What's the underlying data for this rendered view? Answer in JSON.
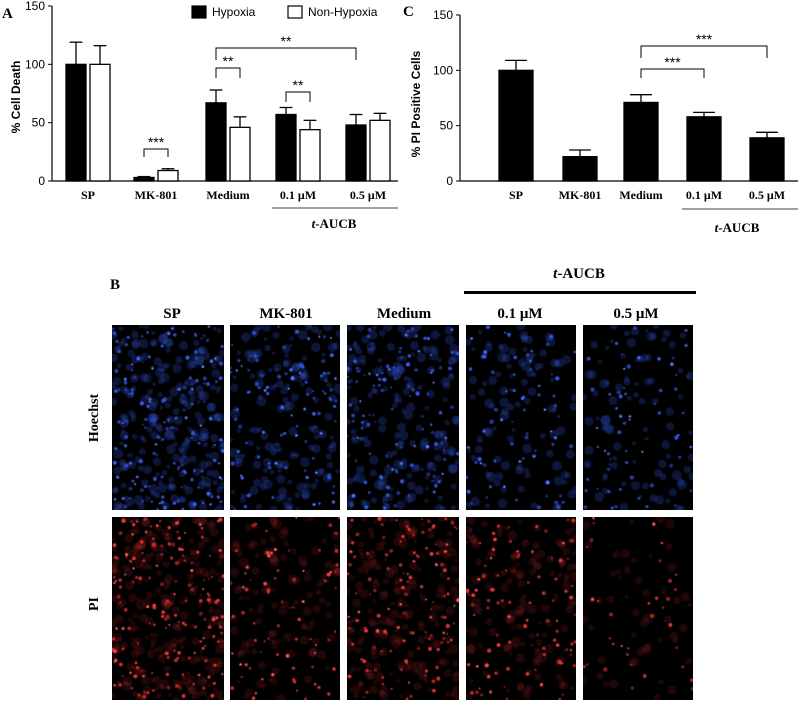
{
  "panel_a": {
    "letter": "A",
    "ylabel": "% Cell Death",
    "yticks": [
      0,
      50,
      100,
      150
    ],
    "legend": [
      {
        "name": "Hypoxia",
        "fill": "#000000"
      },
      {
        "name": "Non-Hypoxia",
        "fill": "#ffffff"
      }
    ],
    "group_label": "t-AUCB",
    "group_label_italic": "t",
    "group_label_rest": "-AUCB"
  },
  "panel_b": {
    "letter": "B",
    "columns": [
      "SP",
      "MK-801",
      "Medium",
      "0.1 μM",
      "0.5 μM"
    ],
    "rows": [
      "Hoechst",
      "PI"
    ],
    "group_label_italic": "t",
    "group_label_rest": "-AUCB",
    "row_colors": {
      "Hoechst": "#3a62ff",
      "PI": "#ff3a3a"
    },
    "cell_density": [
      [
        0.9,
        0.6,
        0.7,
        0.4,
        0.35
      ],
      [
        1.0,
        0.45,
        0.75,
        0.55,
        0.2
      ]
    ]
  },
  "panel_c": {
    "letter": "C",
    "ylabel": "% PI Positive Cells",
    "yticks": [
      0,
      50,
      100,
      150
    ],
    "group_label_italic": "t",
    "group_label_rest": "-AUCB"
  },
  "chart_data": [
    {
      "panel": "A",
      "type": "bar",
      "categories": [
        "SP",
        "MK-801",
        "Medium",
        "0.1 μM",
        "0.5 μM"
      ],
      "series": [
        {
          "name": "Hypoxia",
          "values": [
            100,
            3,
            67,
            57,
            48
          ],
          "errors": [
            19,
            0.8,
            11,
            6,
            9
          ]
        },
        {
          "name": "Non-Hypoxia",
          "values": [
            100,
            9,
            46,
            44,
            52
          ],
          "errors": [
            16,
            1.5,
            9,
            8,
            6
          ]
        }
      ],
      "ylabel": "% Cell Death",
      "ylim": [
        0,
        150
      ],
      "legend": "top-right",
      "grid": false,
      "annotations": [
        {
          "text": "***",
          "from": {
            "category": 1,
            "series": 0
          },
          "to": {
            "category": 1,
            "series": 1
          }
        },
        {
          "text": "**",
          "from": {
            "category": 2,
            "series": 0
          },
          "to": {
            "category": 2,
            "series": 1
          }
        },
        {
          "text": "**",
          "from": {
            "category": 3,
            "series": 0
          },
          "to": {
            "category": 3,
            "series": 1
          }
        },
        {
          "text": "**",
          "from": {
            "category": 2,
            "series": 0
          },
          "to": {
            "category": 4,
            "series": 0
          }
        }
      ]
    },
    {
      "panel": "C",
      "type": "bar",
      "categories": [
        "SP",
        "MK-801",
        "Medium",
        "0.1 μM",
        "0.5 μM"
      ],
      "series": [
        {
          "values": [
            100,
            22,
            71,
            58,
            39
          ],
          "errors": [
            9,
            6,
            7,
            4,
            5
          ]
        }
      ],
      "ylabel": "% PI Positive Cells",
      "ylim": [
        0,
        150
      ],
      "grid": false,
      "annotations": [
        {
          "text": "***",
          "from": {
            "category": 2
          },
          "to": {
            "category": 3
          }
        },
        {
          "text": "***",
          "from": {
            "category": 2
          },
          "to": {
            "category": 4
          }
        }
      ]
    }
  ]
}
